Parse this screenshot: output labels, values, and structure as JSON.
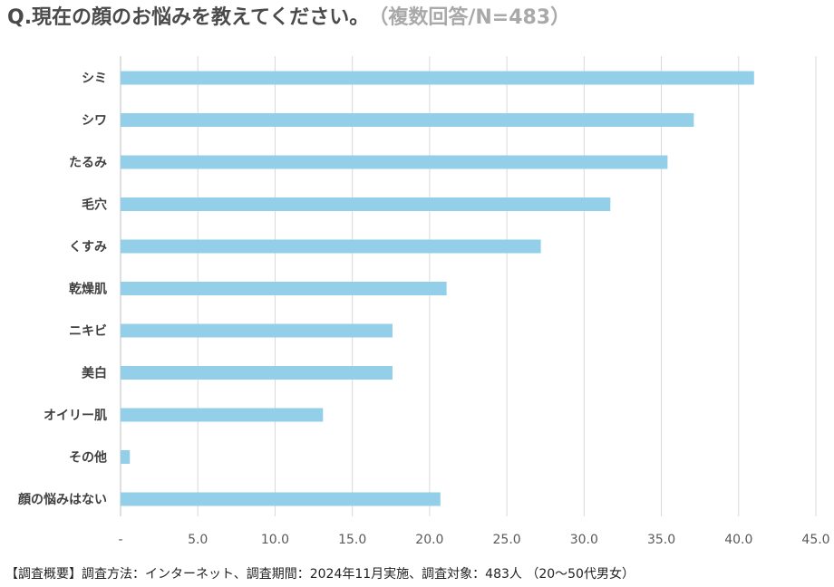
{
  "title": "Q.現在の顔のお悩みを教えてください。",
  "subtitle": "（複数回答/N=483）",
  "footnote": "【調査概要】調査方法：インターネット、調査期間：2024年11月実施、調査対象：483人 （20～50代男女）",
  "colors": {
    "bar": "#94cfe9",
    "grid": "#d9d9d9",
    "axis_text": "#595959",
    "category_text": "#404040"
  },
  "chart_data": {
    "type": "bar",
    "orientation": "horizontal",
    "categories": [
      "シミ",
      "シワ",
      "たるみ",
      "毛穴",
      "くすみ",
      "乾燥肌",
      "ニキビ",
      "美白",
      "オイリー肌",
      "その他",
      "顔の悩みはない"
    ],
    "values": [
      41.0,
      37.1,
      35.4,
      31.7,
      27.2,
      21.1,
      17.6,
      17.6,
      13.1,
      0.6,
      20.7
    ],
    "xlim": [
      0,
      45
    ],
    "xticks": [
      0,
      5,
      10,
      15,
      20,
      25,
      30,
      35,
      40,
      45
    ],
    "xtick_labels": [
      "-",
      "5.0",
      "10.0",
      "15.0",
      "20.0",
      "25.0",
      "30.0",
      "35.0",
      "40.0",
      "45.0"
    ],
    "grid": true,
    "legend": false
  }
}
